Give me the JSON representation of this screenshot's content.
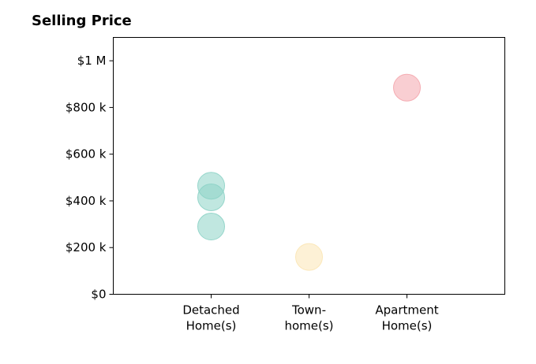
{
  "chart_data": {
    "type": "scatter",
    "title": "Selling Price",
    "xlabel": "",
    "ylabel": "",
    "categories": [
      [
        "Detached",
        "Home(s)"
      ],
      [
        "Town-",
        "home(s)"
      ],
      [
        "Apartment",
        "Home(s)"
      ]
    ],
    "ylim": [
      0,
      1100000
    ],
    "xlim": [
      -1,
      3
    ],
    "y_ticks": [
      {
        "value": 0,
        "label": "$0"
      },
      {
        "value": 200000,
        "label": "$200 k"
      },
      {
        "value": 400000,
        "label": "$400 k"
      },
      {
        "value": 600000,
        "label": "$600 k"
      },
      {
        "value": 800000,
        "label": "$800 k"
      },
      {
        "value": 1000000,
        "label": "$1 M"
      }
    ],
    "grid": false,
    "series": [
      {
        "category_index": 0,
        "color": "#8dd3c7",
        "values": [
          465000,
          415000,
          290000
        ]
      },
      {
        "category_index": 1,
        "color": "#fbe6b4",
        "values": [
          160000
        ]
      },
      {
        "category_index": 2,
        "color": "#f4a6ad",
        "values": [
          885000
        ]
      }
    ]
  }
}
